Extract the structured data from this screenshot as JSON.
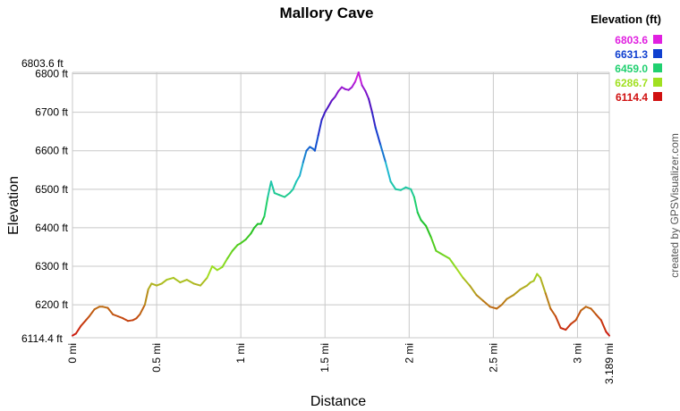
{
  "chart_data": {
    "type": "line",
    "title": "Mallory Cave",
    "xlabel": "Distance",
    "ylabel": "Elevation",
    "credit": "created by GPSVisualizer.com",
    "xlim": [
      0,
      3.189
    ],
    "ylim": [
      6114.4,
      6803.6
    ],
    "x_ticks": [
      {
        "value": 0,
        "label": "0 mi"
      },
      {
        "value": 0.5,
        "label": "0.5 mi"
      },
      {
        "value": 1,
        "label": "1 mi"
      },
      {
        "value": 1.5,
        "label": "1.5 mi"
      },
      {
        "value": 2,
        "label": "2 mi"
      },
      {
        "value": 2.5,
        "label": "2.5 mi"
      },
      {
        "value": 3,
        "label": "3 mi"
      },
      {
        "value": 3.189,
        "label": "3.189 mi"
      }
    ],
    "y_ticks": [
      {
        "value": 6200,
        "label": "6200 ft"
      },
      {
        "value": 6300,
        "label": "6300 ft"
      },
      {
        "value": 6400,
        "label": "6400 ft"
      },
      {
        "value": 6500,
        "label": "6500 ft"
      },
      {
        "value": 6600,
        "label": "6600 ft"
      },
      {
        "value": 6700,
        "label": "6700 ft"
      },
      {
        "value": 6800,
        "label": "6800 ft"
      }
    ],
    "y_extreme_labels": {
      "max": "6803.6 ft",
      "min": "6114.4 ft"
    },
    "legend": {
      "title": "Elevation (ft)",
      "placement": "top-right",
      "entries": [
        {
          "label": "6803.6",
          "color": "#e020e0"
        },
        {
          "label": "6631.3",
          "color": "#1040d0"
        },
        {
          "label": "6459.0",
          "color": "#20d070"
        },
        {
          "label": "6286.7",
          "color": "#a0e020"
        },
        {
          "label": "6114.4",
          "color": "#d01010"
        }
      ]
    },
    "color_scale": [
      {
        "value": 6114.4,
        "color": "#d01010"
      },
      {
        "value": 6180,
        "color": "#c05a10"
      },
      {
        "value": 6250,
        "color": "#b0b020"
      },
      {
        "value": 6286.7,
        "color": "#a0e020"
      },
      {
        "value": 6400,
        "color": "#20c020"
      },
      {
        "value": 6459.0,
        "color": "#20d070"
      },
      {
        "value": 6540,
        "color": "#20c0d0"
      },
      {
        "value": 6631.3,
        "color": "#1040d0"
      },
      {
        "value": 6720,
        "color": "#5010c0"
      },
      {
        "value": 6803.6,
        "color": "#e020e0"
      }
    ],
    "series": [
      {
        "x": [
          0,
          0.02,
          0.05,
          0.08,
          0.1,
          0.13,
          0.16,
          0.18,
          0.21,
          0.24,
          0.27,
          0.3,
          0.33,
          0.36,
          0.38,
          0.4,
          0.43,
          0.45,
          0.47,
          0.5,
          0.53,
          0.56,
          0.6,
          0.64,
          0.68,
          0.72,
          0.76,
          0.8,
          0.83,
          0.86,
          0.89,
          0.92,
          0.95,
          0.98,
          1.0,
          1.03,
          1.06,
          1.08,
          1.1,
          1.12,
          1.14,
          1.16,
          1.18,
          1.19,
          1.2,
          1.23,
          1.26,
          1.29,
          1.31,
          1.33,
          1.35,
          1.37,
          1.39,
          1.41,
          1.43,
          1.44,
          1.46,
          1.48,
          1.5,
          1.52,
          1.54,
          1.56,
          1.58,
          1.6,
          1.62,
          1.64,
          1.66,
          1.68,
          1.7,
          1.72,
          1.74,
          1.76,
          1.78,
          1.8,
          1.83,
          1.86,
          1.89,
          1.92,
          1.95,
          1.98,
          2.01,
          2.03,
          2.05,
          2.07,
          2.1,
          2.13,
          2.16,
          2.2,
          2.24,
          2.28,
          2.32,
          2.36,
          2.4,
          2.44,
          2.48,
          2.52,
          2.55,
          2.58,
          2.62,
          2.66,
          2.7,
          2.72,
          2.74,
          2.76,
          2.78,
          2.81,
          2.84,
          2.87,
          2.9,
          2.93,
          2.96,
          2.99,
          3.02,
          3.05,
          3.08,
          3.11,
          3.14,
          3.17,
          3.189
        ],
        "y": [
          6120,
          6125,
          6145,
          6160,
          6170,
          6188,
          6195,
          6195,
          6192,
          6175,
          6170,
          6165,
          6158,
          6160,
          6165,
          6175,
          6200,
          6240,
          6255,
          6250,
          6255,
          6265,
          6270,
          6258,
          6265,
          6255,
          6250,
          6270,
          6300,
          6290,
          6298,
          6320,
          6340,
          6355,
          6360,
          6370,
          6385,
          6400,
          6410,
          6410,
          6430,
          6480,
          6520,
          6505,
          6490,
          6485,
          6480,
          6490,
          6500,
          6520,
          6535,
          6570,
          6600,
          6610,
          6605,
          6600,
          6640,
          6680,
          6700,
          6715,
          6730,
          6740,
          6755,
          6765,
          6760,
          6758,
          6765,
          6780,
          6803.6,
          6770,
          6755,
          6735,
          6700,
          6660,
          6615,
          6570,
          6520,
          6500,
          6498,
          6505,
          6500,
          6480,
          6440,
          6420,
          6405,
          6375,
          6340,
          6330,
          6320,
          6295,
          6270,
          6250,
          6225,
          6210,
          6195,
          6190,
          6200,
          6215,
          6225,
          6240,
          6250,
          6258,
          6262,
          6280,
          6270,
          6230,
          6190,
          6170,
          6140,
          6135,
          6150,
          6160,
          6185,
          6195,
          6190,
          6175,
          6160,
          6130,
          6120
        ]
      }
    ]
  }
}
